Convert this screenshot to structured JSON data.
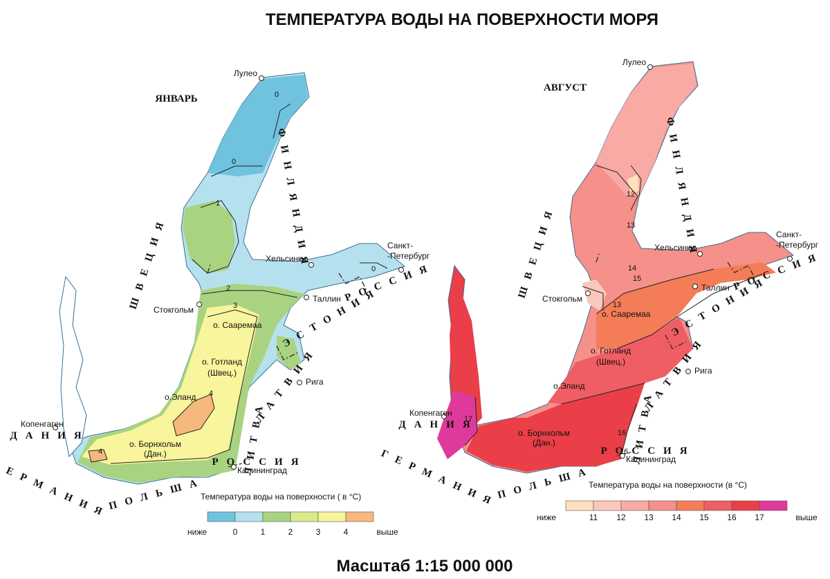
{
  "title": "ТЕМПЕРАТУРА ВОДЫ НА ПОВЕРХНОСТИ МОРЯ",
  "scale": "Масштаб 1:15 000 000",
  "maps": [
    {
      "month": "ЯНВАРЬ",
      "places": [
        "Лулео",
        "Хельсинки",
        "Санкт-",
        "-Петербург",
        "Таллин",
        "Стокгольм",
        "о. Сааремаа",
        "о. Готланд",
        "(Швец.)",
        "Рига",
        "о.Эланд",
        "о. Борнхольм",
        "(Дан.)",
        "Копенгаген",
        "Калининград"
      ],
      "countries": [
        "ШВЕЦИЯ",
        "ФИНЛЯНДИЯ",
        "РОССИЯ",
        "ЭСТОНИЯ",
        "ЛАТВИЯ",
        "ЛИТВА",
        "РОССИЯ",
        "ПОЛЬША",
        "ГЕРМАНИЯ",
        "ДАНИЯ"
      ],
      "isolines": [
        "0",
        "0",
        "1",
        "2",
        "3",
        "4",
        "4",
        "0"
      ],
      "legend": {
        "title": "Температура воды на поверхности ( в °С)",
        "labels": [
          "ниже",
          "0",
          "1",
          "2",
          "3",
          "4",
          "выше"
        ],
        "colors": [
          "#6fc3df",
          "#b5e1ef",
          "#a9d380",
          "#d9e98c",
          "#f8f59c",
          "#f6b87c"
        ]
      }
    },
    {
      "month": "АВГУСТ",
      "places": [
        "Лулео",
        "Хельсинки",
        "Санкт-",
        "-Петербург",
        "Таллин",
        "Стокгольм",
        "о. Сааремаа",
        "о. Готланд",
        "(Швец.)",
        "Рига",
        "о.Эланд",
        "о. Борнхольм",
        "(Дан.)",
        "Копенгаген",
        "Калининград"
      ],
      "countries": [
        "ШВЕЦИЯ",
        "ФИНЛЯНДИЯ",
        "РОССИЯ",
        "ЭСТОНИЯ",
        "ЛАТВИЯ",
        "ЛИТВА",
        "РОССИЯ",
        "ПОЛЬША",
        "ГЕРМАНИЯ",
        "ДАНИЯ"
      ],
      "isolines": [
        "12",
        "13",
        "14",
        "15",
        "13",
        "16",
        "16",
        "17"
      ],
      "legend": {
        "title": "Температура воды на поверхности (в °С)",
        "labels": [
          "ниже",
          "11",
          "12",
          "13",
          "14",
          "15",
          "16",
          "17",
          "выше"
        ],
        "colors": [
          "#fde1be",
          "#fbc8bd",
          "#f9aaa4",
          "#f5908a",
          "#f47c57",
          "#ef5e64",
          "#ea3e48",
          "#df3a9b"
        ]
      }
    }
  ]
}
